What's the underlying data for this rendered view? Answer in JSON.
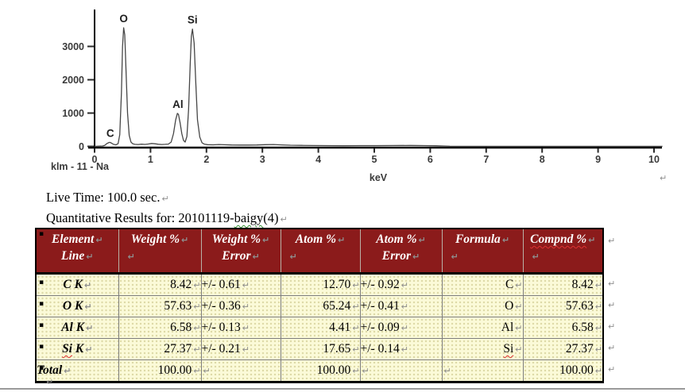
{
  "chart_data": {
    "type": "line",
    "title": "",
    "xlabel": "keV",
    "ylabel": "",
    "xlim": [
      0,
      10.2
    ],
    "ylim": [
      0,
      3800
    ],
    "x_ticks": [
      0,
      1,
      2,
      3,
      4,
      5,
      6,
      7,
      8,
      9,
      10
    ],
    "y_ticks": [
      0,
      1000,
      2000,
      3000
    ],
    "grid": false,
    "legend_position": "none",
    "series_label": "klm - 11 - Na",
    "peaks": [
      {
        "label": "C",
        "kev": 0.28,
        "counts": 120
      },
      {
        "label": "O",
        "kev": 0.52,
        "counts": 3560
      },
      {
        "label": "Al",
        "kev": 1.49,
        "counts": 990
      },
      {
        "label": "Si",
        "kev": 1.75,
        "counts": 3520
      }
    ],
    "points": [
      [
        0,
        3
      ],
      [
        0.08,
        6
      ],
      [
        0.14,
        12
      ],
      [
        0.18,
        30
      ],
      [
        0.22,
        85
      ],
      [
        0.26,
        120
      ],
      [
        0.28,
        118
      ],
      [
        0.31,
        90
      ],
      [
        0.34,
        62
      ],
      [
        0.38,
        48
      ],
      [
        0.42,
        80
      ],
      [
        0.45,
        350
      ],
      [
        0.48,
        1600
      ],
      [
        0.5,
        3000
      ],
      [
        0.52,
        3560
      ],
      [
        0.54,
        3350
      ],
      [
        0.56,
        2400
      ],
      [
        0.59,
        1000
      ],
      [
        0.62,
        330
      ],
      [
        0.65,
        130
      ],
      [
        0.68,
        80
      ],
      [
        0.72,
        62
      ],
      [
        0.78,
        58
      ],
      [
        0.84,
        66
      ],
      [
        0.9,
        60
      ],
      [
        0.96,
        72
      ],
      [
        1.02,
        88
      ],
      [
        1.08,
        78
      ],
      [
        1.14,
        64
      ],
      [
        1.2,
        58
      ],
      [
        1.26,
        62
      ],
      [
        1.32,
        70
      ],
      [
        1.37,
        130
      ],
      [
        1.41,
        380
      ],
      [
        1.45,
        800
      ],
      [
        1.48,
        990
      ],
      [
        1.5,
        960
      ],
      [
        1.53,
        700
      ],
      [
        1.56,
        380
      ],
      [
        1.59,
        180
      ],
      [
        1.62,
        130
      ],
      [
        1.65,
        300
      ],
      [
        1.68,
        1100
      ],
      [
        1.71,
        2500
      ],
      [
        1.73,
        3300
      ],
      [
        1.75,
        3520
      ],
      [
        1.78,
        3100
      ],
      [
        1.81,
        1900
      ],
      [
        1.84,
        800
      ],
      [
        1.88,
        280
      ],
      [
        1.92,
        110
      ],
      [
        1.96,
        68
      ],
      [
        2.02,
        52
      ],
      [
        2.12,
        48
      ],
      [
        2.22,
        58
      ],
      [
        2.32,
        50
      ],
      [
        2.45,
        44
      ],
      [
        2.6,
        40
      ],
      [
        2.75,
        40
      ],
      [
        2.9,
        44
      ],
      [
        3.05,
        52
      ],
      [
        3.2,
        56
      ],
      [
        3.35,
        46
      ],
      [
        3.5,
        36
      ],
      [
        3.7,
        30
      ],
      [
        3.9,
        27
      ],
      [
        4.15,
        24
      ],
      [
        4.45,
        22
      ],
      [
        4.75,
        23
      ],
      [
        5.05,
        24
      ],
      [
        5.35,
        27
      ],
      [
        5.65,
        28
      ],
      [
        5.9,
        24
      ],
      [
        6.1,
        20
      ],
      [
        6.25,
        12
      ],
      [
        6.35,
        4
      ],
      [
        6.6,
        2
      ],
      [
        7.0,
        2
      ],
      [
        7.5,
        2
      ],
      [
        8.0,
        2
      ],
      [
        8.5,
        2
      ],
      [
        9.0,
        2
      ],
      [
        9.5,
        2
      ],
      [
        10.0,
        2
      ],
      [
        10.15,
        2
      ]
    ]
  },
  "text": {
    "live_time": "Live Time: 100.0 sec.",
    "quant_prefix": "Quantitative Results for: 20101119-",
    "quant_misspelled": "baigy",
    "quant_suffix": "(4)"
  },
  "table": {
    "columns": [
      {
        "line1": "Element",
        "line2": "Line",
        "spell": ""
      },
      {
        "line1": "Weight %",
        "line2": "",
        "spell": ""
      },
      {
        "line1": "Weight %",
        "line2": "Error",
        "spell": ""
      },
      {
        "line1": "Atom %",
        "line2": "",
        "spell": ""
      },
      {
        "line1": "Atom %",
        "line2": "Error",
        "spell": ""
      },
      {
        "line1": "Formula",
        "line2": "",
        "spell": ""
      },
      {
        "line1": "Compnd %",
        "line2": "",
        "spell": "red"
      }
    ],
    "rows": [
      {
        "cells": [
          "C K",
          "8.42",
          "+/- 0.61",
          "12.70",
          "+/- 0.92",
          "C",
          "8.42"
        ],
        "spell_red": [],
        "total": false
      },
      {
        "cells": [
          "O K",
          "57.63",
          "+/- 0.36",
          "65.24",
          "+/- 0.41",
          "O",
          "57.63"
        ],
        "spell_red": [],
        "total": false
      },
      {
        "cells": [
          "Al K",
          "6.58",
          "+/- 0.13",
          "4.41",
          "+/- 0.09",
          "Al",
          "6.58"
        ],
        "spell_red": [],
        "total": false
      },
      {
        "cells": [
          "Si K",
          "27.37",
          "+/- 0.21",
          "17.65",
          "+/- 0.14",
          "Si",
          "27.37"
        ],
        "spell_red": [
          0,
          5
        ],
        "total": false
      },
      {
        "cells": [
          "Total",
          "100.00",
          "",
          "100.00",
          "",
          "",
          "100.00"
        ],
        "spell_red": [],
        "total": true
      }
    ]
  },
  "marks": {
    "pilcrow": "↵",
    "bullet": "▪"
  },
  "colors": {
    "header_bg": "#8B1B1B",
    "header_text": "#FFFFFF",
    "cell_bg": "#FBFAD8",
    "trace": "#464646",
    "window_edge": "#9A9A9A"
  }
}
